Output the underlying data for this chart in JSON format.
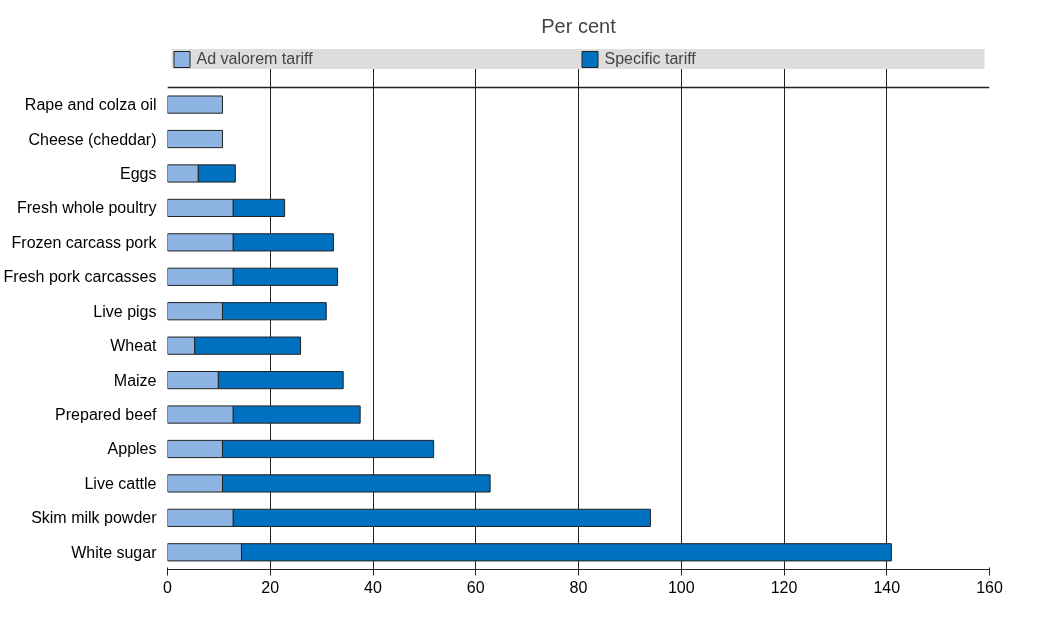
{
  "chart_data": {
    "type": "bar",
    "orientation": "horizontal",
    "stacked": true,
    "title": "Per cent",
    "categories": [
      "Rape and colza oil",
      "Cheese (cheddar)",
      "Eggs",
      "Fresh whole poultry",
      "Frozen carcass pork",
      "Fresh pork carcasses",
      "Live pigs",
      "Wheat",
      "Maize",
      "Prepared beef",
      "Apples",
      "Live cattle",
      "Skim milk powder",
      "White sugar"
    ],
    "series": [
      {
        "name": "Ad valorem tariff",
        "color": "#8db4e2",
        "values": [
          10.7,
          10.7,
          6.0,
          12.8,
          12.8,
          12.8,
          10.7,
          5.3,
          9.9,
          12.8,
          10.7,
          10.7,
          12.8,
          14.4
        ]
      },
      {
        "name": "Specific tariff",
        "color": "#0070c0",
        "values": [
          null,
          null,
          7.2,
          10.0,
          19.5,
          20.3,
          20.2,
          20.6,
          24.3,
          24.7,
          41.1,
          52.1,
          81.2,
          126.5
        ]
      }
    ],
    "xlim": [
      0,
      160
    ],
    "xticks": [
      0,
      20,
      40,
      60,
      80,
      100,
      120,
      140,
      160
    ],
    "grid": "x",
    "legend": "top"
  }
}
